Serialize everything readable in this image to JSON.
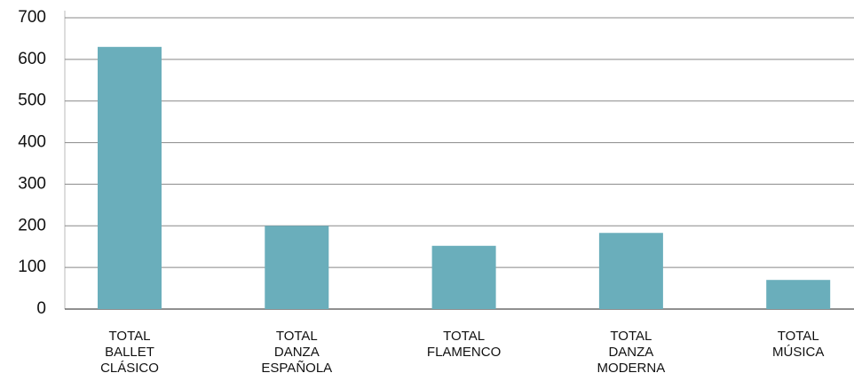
{
  "chart_data": {
    "type": "bar",
    "categories": [
      "TOTAL BALLET CLÁSICO",
      "TOTAL DANZA ESPAÑOLA",
      "TOTAL FLAMENCO",
      "TOTAL DANZA MODERNA",
      "TOTAL MÚSICA"
    ],
    "values": [
      630,
      200,
      152,
      183,
      70
    ],
    "color": "#6aaebb",
    "ylim": [
      0,
      700
    ],
    "yticks": [
      0,
      100,
      200,
      300,
      400,
      500,
      600,
      700
    ],
    "grid": true
  }
}
